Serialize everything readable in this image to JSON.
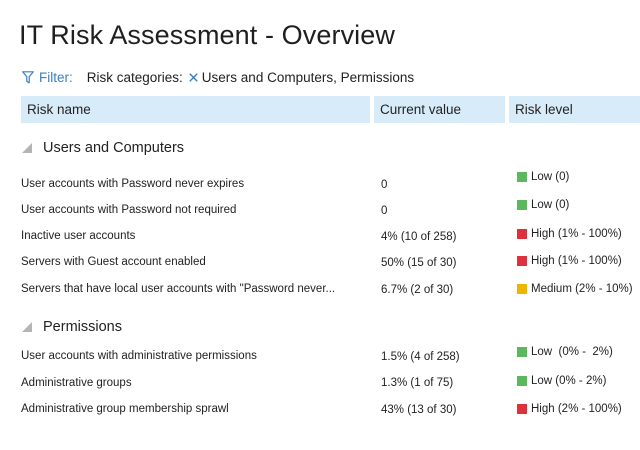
{
  "page": {
    "title": "IT Risk Assessment - Overview"
  },
  "filter": {
    "label": "Filter:",
    "category_label": "Risk categories:",
    "values": "Users and Computers, Permissions",
    "icon": "funnel-icon",
    "remove_icon": "close-icon"
  },
  "table": {
    "columns": [
      "Risk name",
      "Current value",
      "Risk level"
    ],
    "header_bg": "#d7ecf8",
    "groups": [
      {
        "label": "Users and Computers",
        "rows": [
          {
            "name": "User accounts with Password never expires",
            "value": "0",
            "level": "Low (0)",
            "color": "#5cb85c"
          },
          {
            "name": "User accounts with Password not required",
            "value": "0",
            "level": "Low (0)",
            "color": "#5cb85c"
          },
          {
            "name": "Inactive user accounts",
            "value": "4% (10 of 258)",
            "level": "High (1% - 100%)",
            "color": "#e0303a"
          },
          {
            "name": "Servers with Guest account enabled",
            "value": "50% (15 of 30)",
            "level": "High (1% - 100%)",
            "color": "#e0303a"
          },
          {
            "name": "Servers that have local user accounts with \"Password never...",
            "value": "6.7% (2 of 30)",
            "level": "Medium (2% - 10%)",
            "color": "#f0b400"
          }
        ]
      },
      {
        "label": "Permissions",
        "rows": [
          {
            "name": "User accounts with administrative permissions",
            "value": "1.5% (4 of 258)",
            "level": "Low  (0% -  2%)",
            "color": "#5cb85c"
          },
          {
            "name": "Administrative groups",
            "value": "1.3% (1 of 75)",
            "level": "Low (0% - 2%)",
            "color": "#5cb85c"
          },
          {
            "name": "Administrative group membership sprawl",
            "value": "43% (13 of 30)",
            "level": "High (2% - 100%)",
            "color": "#e0303a"
          }
        ]
      }
    ]
  }
}
